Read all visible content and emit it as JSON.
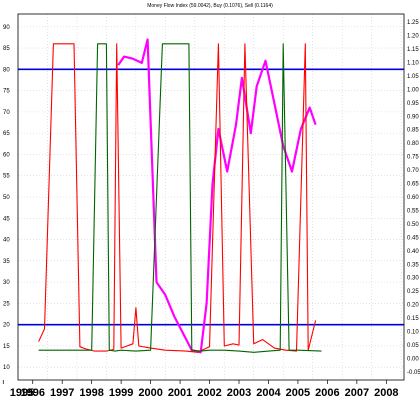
{
  "chart_data": {
    "type": "line",
    "title": "Money Flow Index (59.0042), Buy (0.1076), Sell (0.1164)",
    "xlabel": "",
    "ylabel": "",
    "x_tick_labels": [
      "1995",
      "1996",
      "1997",
      "1998",
      "1999",
      "2000",
      "2001",
      "2002",
      "2003",
      "2004",
      "2005",
      "2006",
      "2007",
      "2008"
    ],
    "xlim": [
      1995.5,
      2008.6
    ],
    "y_left_ticks": [
      10,
      15,
      20,
      25,
      30,
      35,
      40,
      45,
      50,
      55,
      60,
      65,
      70,
      75,
      80,
      85,
      90
    ],
    "y_left_ticks_shown": [
      "10",
      "15",
      "20",
      "25",
      "30",
      "35",
      "40",
      "45",
      "50",
      "55",
      "60",
      "65",
      "70",
      "75",
      "80",
      "85",
      "90"
    ],
    "ylim_left": [
      7,
      93
    ],
    "y_right_tick_labels": [
      "-0.05",
      "0.00",
      "0.05",
      "0.10",
      "0.15",
      "0.20",
      "0.25",
      "0.30",
      "0.35",
      "0.40",
      "0.45",
      "0.50",
      "0.55",
      "0.60",
      "0.65",
      "0.70",
      "0.75",
      "0.80",
      "0.85",
      "0.90",
      "0.95",
      "1.00",
      "1.05",
      "1.10",
      "1.15",
      "1.20",
      "1.25"
    ],
    "ylim_right": [
      -0.08,
      1.28
    ],
    "reference_lines": [
      {
        "value": 80,
        "color": "#0000dd"
      },
      {
        "value": 20,
        "color": "#0000dd"
      }
    ],
    "grid": true,
    "series": [
      {
        "color": "#ff00ff",
        "x": [
          1998.9,
          1999.1,
          1999.4,
          1999.7,
          1999.9,
          2000.2,
          2000.5,
          2000.8,
          2001.1,
          2001.4,
          2001.7,
          2001.9,
          2002.1,
          2002.3,
          2002.6,
          2002.9,
          2003.1,
          2003.4,
          2003.6,
          2003.9,
          2004.2,
          2004.5,
          2004.8,
          2005.1,
          2005.4,
          2005.6
        ],
        "values": [
          81,
          83,
          82.5,
          81.5,
          87,
          30,
          27,
          22,
          18,
          14,
          13.5,
          25,
          53,
          66,
          56,
          67,
          78,
          65,
          76,
          82,
          72,
          62,
          56,
          66,
          71,
          67
        ]
      },
      {
        "color": "#ff0000",
        "x": [
          1996.2,
          1996.4,
          1996.7,
          1997.0,
          1997.4,
          1997.6,
          1997.8,
          1998.1,
          1998.5,
          1998.75,
          1998.85,
          1999.0,
          1999.2,
          1999.4,
          1999.5,
          1999.6,
          2000.0,
          2000.5,
          2001.2,
          2001.6,
          2002.0,
          2002.3,
          2002.5,
          2002.8,
          2003.0,
          2003.2,
          2003.5,
          2003.8,
          2004.2,
          2004.6,
          2004.95,
          2005.25,
          2005.35,
          2005.6
        ],
        "values": [
          16,
          19,
          86,
          86,
          86,
          14.8,
          14.3,
          13.8,
          13.8,
          14.2,
          86,
          14.5,
          15,
          15.5,
          24,
          15,
          14.5,
          14,
          13.8,
          13.5,
          14.8,
          86,
          15,
          15.5,
          15.2,
          86,
          15.5,
          16.5,
          14.5,
          14,
          13.8,
          86,
          14,
          21
        ]
      },
      {
        "color": "#006400",
        "x": [
          1996.2,
          1997.5,
          1997.7,
          1998.0,
          1998.2,
          1998.5,
          1998.6,
          1998.8,
          1999.0,
          1999.5,
          2000.0,
          2000.4,
          2000.9,
          2001.3,
          2001.4,
          2001.7,
          2002.0,
          2002.5,
          2003.0,
          2003.5,
          2004.0,
          2004.4,
          2004.5,
          2004.7,
          2005.0,
          2005.8
        ],
        "values": [
          14,
          14,
          14,
          14,
          86,
          86,
          14,
          13.8,
          14,
          13.8,
          14,
          86,
          86,
          86,
          14,
          13.8,
          14,
          14,
          13.8,
          13.5,
          13.8,
          14,
          86,
          14,
          14,
          13.8
        ]
      }
    ]
  }
}
